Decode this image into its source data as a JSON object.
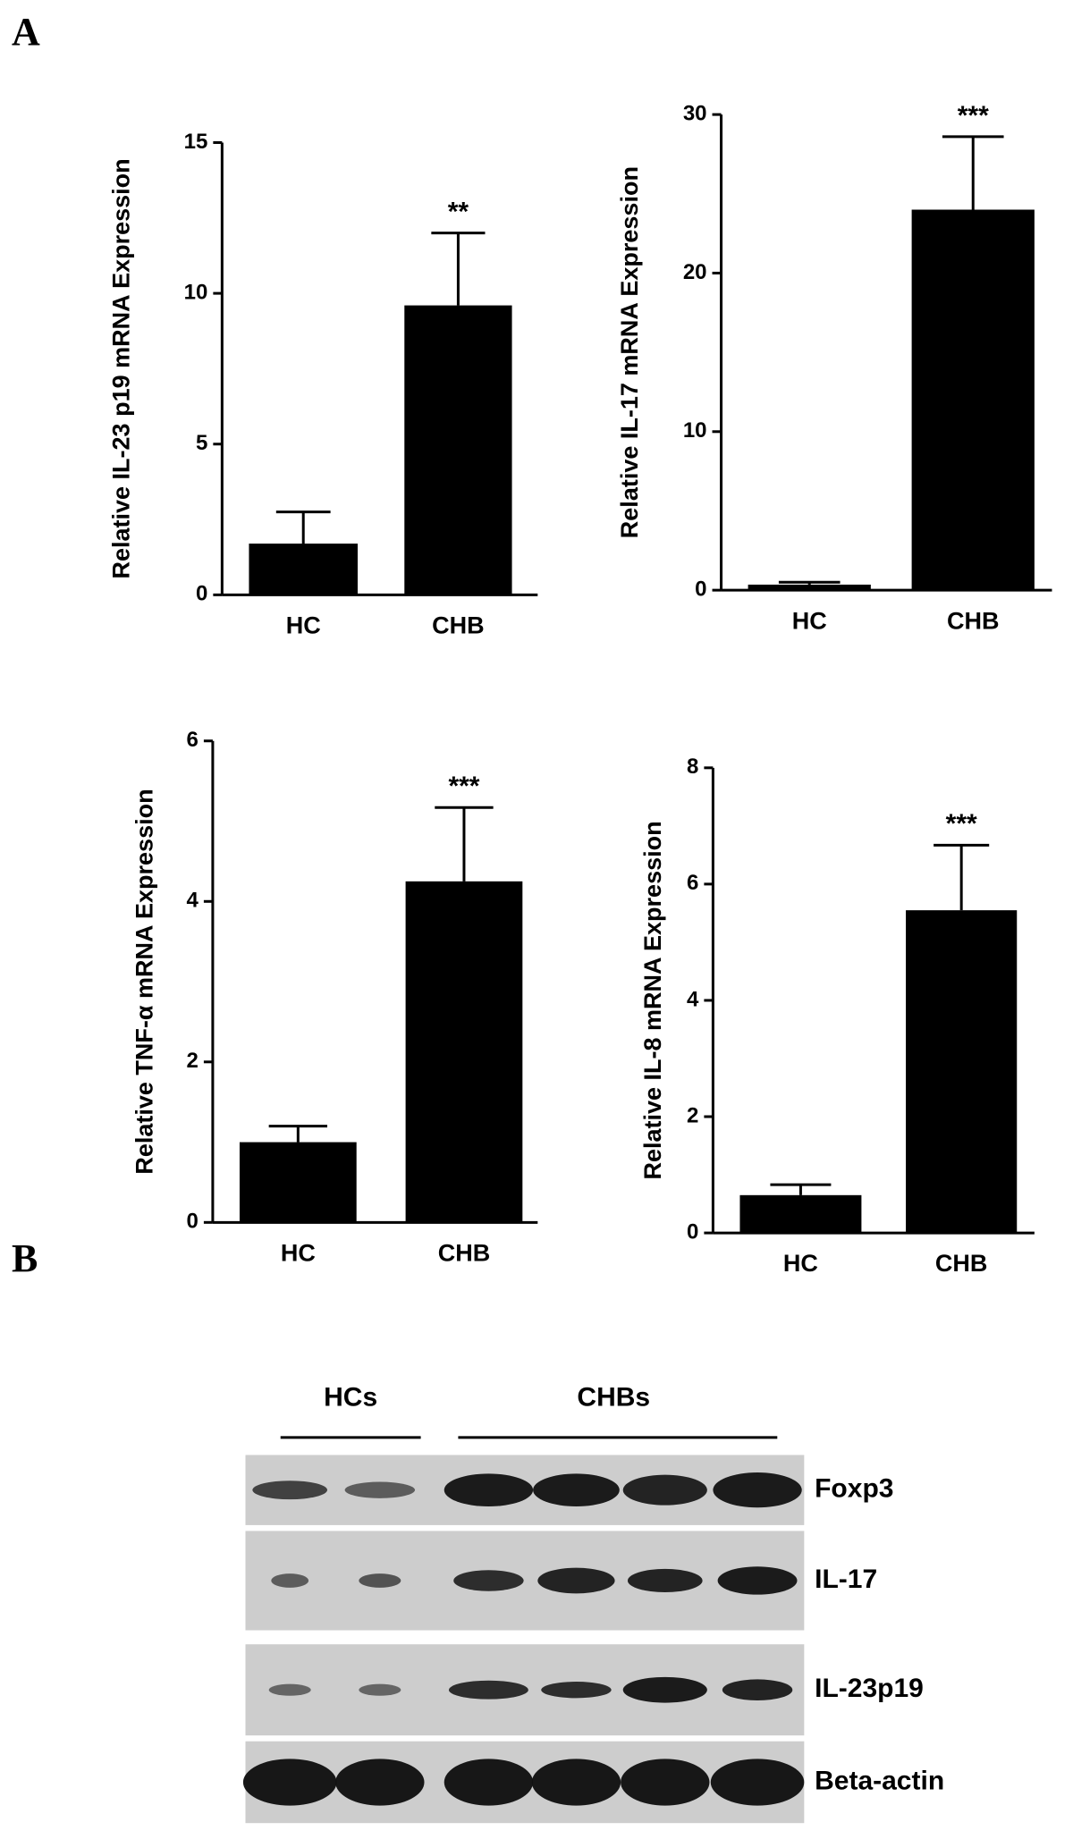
{
  "panel_labels": [
    "A",
    "B"
  ],
  "chart_data": [
    {
      "type": "bar",
      "ylabel": "Relative IL-23 p19 mRNA Expression",
      "categories": [
        "HC",
        "CHB"
      ],
      "values": [
        1.7,
        9.6
      ],
      "errors": [
        1.05,
        2.4
      ],
      "annotation": "**",
      "color": "#000000",
      "ylim": [
        0,
        15
      ],
      "yticks": [
        0,
        5,
        10,
        15
      ]
    },
    {
      "type": "bar",
      "ylabel": "Relative IL-17 mRNA Expression",
      "categories": [
        "HC",
        "CHB"
      ],
      "values": [
        0.35,
        24
      ],
      "errors": [
        0.15,
        4.6
      ],
      "annotation": "***",
      "color": "#000000",
      "ylim": [
        0,
        30
      ],
      "yticks": [
        0,
        10,
        20,
        30
      ]
    },
    {
      "type": "bar",
      "ylabel": "Relative TNF-α  mRNA Expression",
      "categories": [
        "HC",
        "CHB"
      ],
      "values": [
        1.0,
        4.25
      ],
      "errors": [
        0.2,
        0.92
      ],
      "annotation": "***",
      "color": "#000000",
      "ylim": [
        0,
        6
      ],
      "yticks": [
        0,
        2,
        4,
        6
      ]
    },
    {
      "type": "bar",
      "ylabel": "Relative IL-8 mRNA Expression",
      "categories": [
        "HC",
        "CHB"
      ],
      "values": [
        0.65,
        5.55
      ],
      "errors": [
        0.18,
        1.12
      ],
      "annotation": "***",
      "color": "#000000",
      "ylim": [
        0,
        8
      ],
      "yticks": [
        0,
        2,
        4,
        6,
        8
      ]
    }
  ],
  "blot": {
    "groups": [
      "HCs",
      "CHBs"
    ],
    "rows": [
      "Foxp3",
      "IL-17",
      "IL-23p19",
      "Beta-actin"
    ]
  }
}
